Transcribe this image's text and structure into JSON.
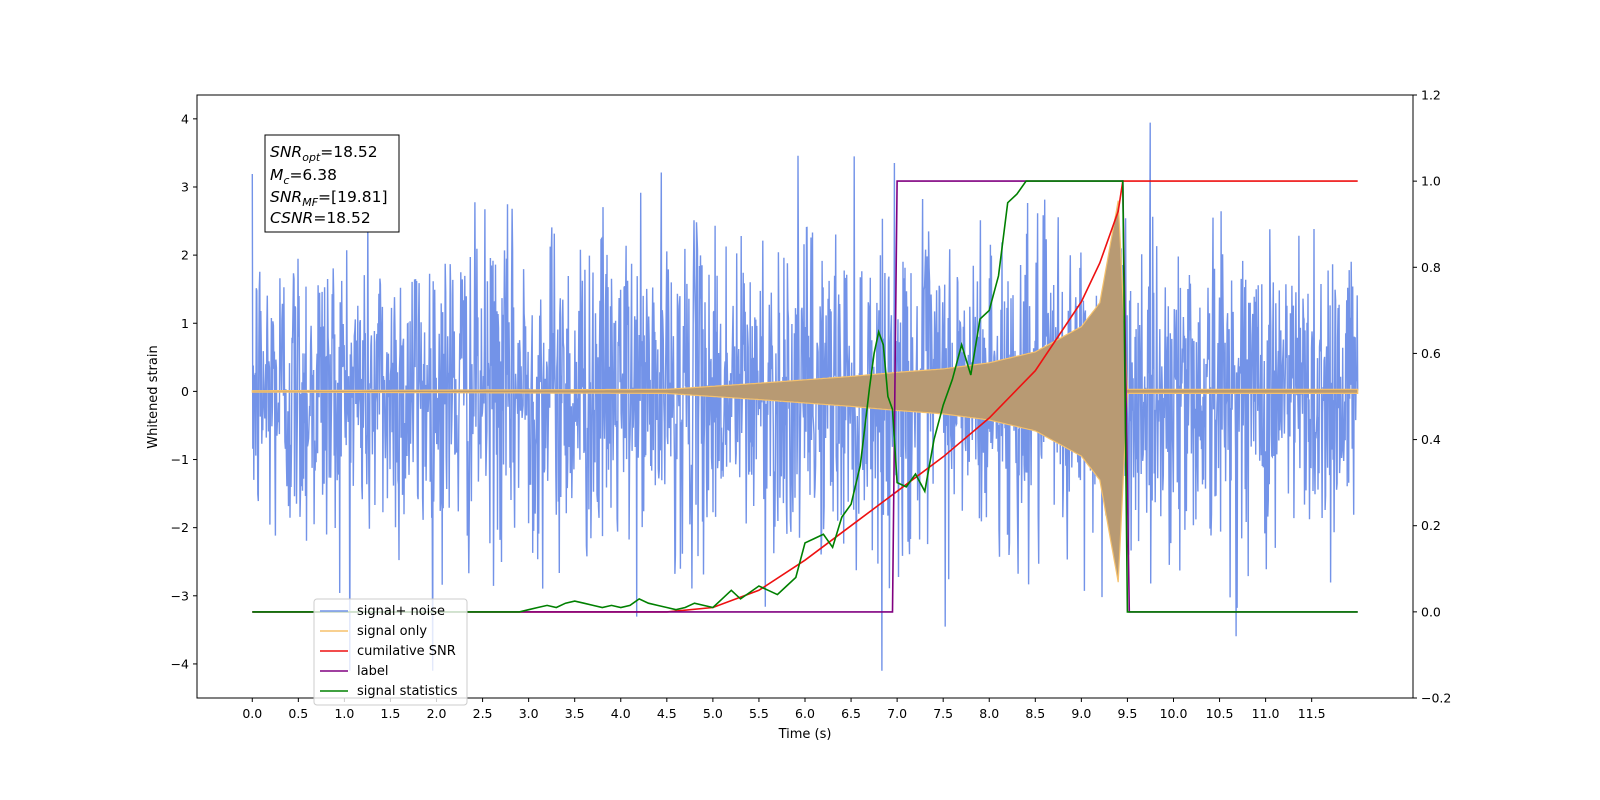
{
  "chart_data": {
    "type": "line",
    "xlabel": "Time (s)",
    "ylabel": "Whitened strain",
    "xlim": [
      -0.6,
      12.6
    ],
    "ylim": [
      -4.5,
      4.35
    ],
    "y2lim": [
      -0.2,
      1.2
    ],
    "grid": false,
    "legend_position": "lower-left",
    "x_ticks": [
      "0.0",
      "0.5",
      "1.0",
      "1.5",
      "2.0",
      "2.5",
      "3.0",
      "3.5",
      "4.0",
      "4.5",
      "5.0",
      "5.5",
      "6.0",
      "6.5",
      "7.0",
      "7.5",
      "8.0",
      "8.5",
      "9.0",
      "9.5",
      "10.0",
      "10.5",
      "11.0",
      "11.5"
    ],
    "y_ticks": [
      "4",
      "3",
      "2",
      "1",
      "0",
      "−1",
      "−2",
      "−3",
      "−4"
    ],
    "y2_ticks": [
      "1.2",
      "1.0",
      "0.8",
      "0.6",
      "0.4",
      "0.2",
      "0.0",
      "−0.2"
    ],
    "annotation": {
      "snr_opt_main": "SNR",
      "snr_opt_sub": "opt",
      "snr_opt_value": "=18.52",
      "mc_main": "M",
      "mc_sub": "c",
      "mc_value": "=6.38",
      "snr_mf_main": "SNR",
      "snr_mf_sub": "MF",
      "snr_mf_value": "=[19.81]",
      "csnr_main": "CSNR",
      "csnr_value": "=18.52"
    },
    "series": [
      {
        "name": "signal+ noise",
        "color": "#7393e8",
        "axis": "left",
        "x_range": [
          0.0,
          12.0
        ],
        "amplitude_approx": [
          -4.1,
          4.0
        ]
      },
      {
        "name": "signal only",
        "color": "#f5c16c",
        "axis": "left",
        "x_range": [
          0.0,
          12.0
        ],
        "envelope": {
          "t": [
            0.0,
            4.5,
            5.5,
            6.5,
            7.0,
            7.5,
            8.0,
            8.5,
            9.0,
            9.2,
            9.4,
            9.5,
            12.0
          ],
          "amp": [
            0.01,
            0.03,
            0.12,
            0.22,
            0.28,
            0.33,
            0.42,
            0.58,
            0.95,
            1.3,
            2.8,
            0.03,
            0.03
          ]
        }
      },
      {
        "name": "cumilative SNR",
        "color": "#ee1111",
        "axis": "right",
        "x": [
          0.0,
          4.5,
          5.0,
          5.5,
          6.0,
          6.5,
          7.0,
          7.5,
          8.0,
          8.5,
          9.0,
          9.2,
          9.4,
          9.45,
          12.0
        ],
        "y": [
          0.0,
          0.0,
          0.01,
          0.05,
          0.12,
          0.2,
          0.28,
          0.36,
          0.45,
          0.56,
          0.72,
          0.81,
          0.93,
          1.0,
          1.0
        ]
      },
      {
        "name": "label",
        "color": "#800080",
        "axis": "right",
        "x": [
          0.0,
          6.95,
          7.0,
          9.45,
          9.52,
          12.0
        ],
        "y": [
          0.0,
          0.0,
          1.0,
          1.0,
          0.0,
          0.0
        ]
      },
      {
        "name": "signal statistics",
        "color": "#008000",
        "axis": "right",
        "x": [
          0.0,
          2.9,
          3.0,
          3.1,
          3.2,
          3.3,
          3.4,
          3.5,
          3.6,
          3.7,
          3.8,
          3.9,
          4.0,
          4.1,
          4.2,
          4.3,
          4.4,
          4.5,
          4.6,
          4.7,
          4.8,
          4.9,
          5.0,
          5.1,
          5.2,
          5.3,
          5.4,
          5.5,
          5.6,
          5.7,
          5.8,
          5.9,
          6.0,
          6.1,
          6.2,
          6.3,
          6.4,
          6.5,
          6.6,
          6.7,
          6.75,
          6.8,
          6.85,
          6.9,
          6.95,
          7.0,
          7.1,
          7.2,
          7.3,
          7.4,
          7.5,
          7.6,
          7.7,
          7.8,
          7.9,
          8.0,
          8.1,
          8.2,
          8.3,
          8.4,
          8.5,
          8.6,
          9.0,
          9.4,
          9.45,
          9.5,
          9.55,
          12.0
        ],
        "y": [
          0.0,
          0.0,
          0.005,
          0.01,
          0.015,
          0.01,
          0.02,
          0.025,
          0.02,
          0.015,
          0.01,
          0.015,
          0.01,
          0.015,
          0.03,
          0.02,
          0.015,
          0.01,
          0.005,
          0.01,
          0.02,
          0.015,
          0.01,
          0.03,
          0.05,
          0.03,
          0.045,
          0.06,
          0.05,
          0.04,
          0.06,
          0.08,
          0.16,
          0.17,
          0.18,
          0.15,
          0.22,
          0.25,
          0.34,
          0.52,
          0.6,
          0.65,
          0.62,
          0.5,
          0.47,
          0.3,
          0.29,
          0.32,
          0.28,
          0.4,
          0.48,
          0.54,
          0.62,
          0.55,
          0.68,
          0.7,
          0.78,
          0.95,
          0.97,
          1.0,
          1.0,
          1.0,
          1.0,
          1.0,
          1.0,
          0.0,
          0.0,
          0.0
        ]
      }
    ]
  }
}
